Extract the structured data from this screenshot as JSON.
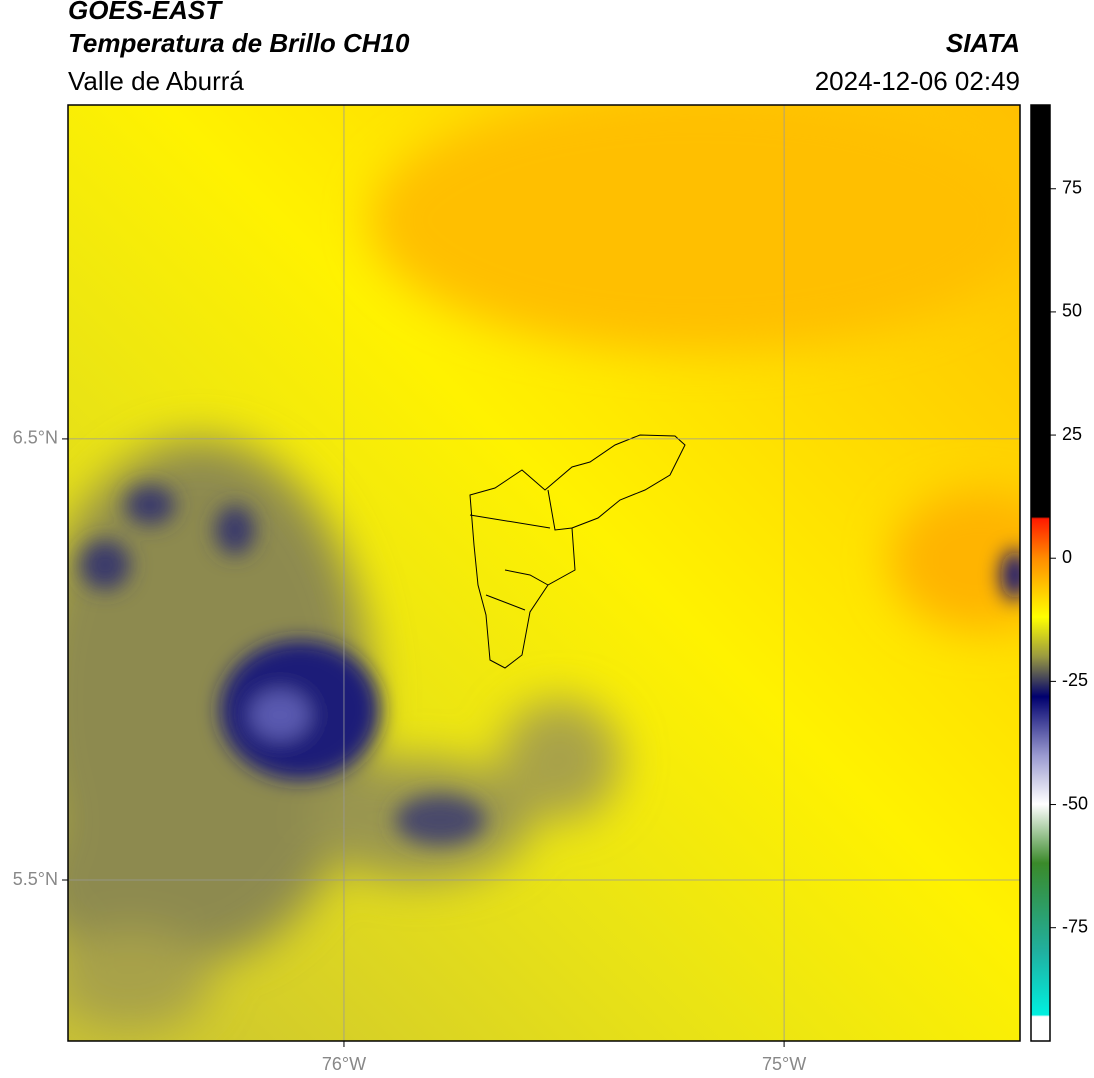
{
  "header": {
    "title": "GOES-EAST",
    "subtitle": "Temperatura de Brillo CH10",
    "region": "Valle de Aburrá",
    "source": "SIATA",
    "datetime": "2024-12-06 02:49"
  },
  "map": {
    "xlim": [
      -76.627,
      -74.464
    ],
    "ylim": [
      5.135,
      7.257
    ],
    "xticks": [
      {
        "value": -76,
        "label": "76°W"
      },
      {
        "value": -75,
        "label": "75°W"
      }
    ],
    "yticks": [
      {
        "value": 5.5,
        "label": "5.5°N"
      },
      {
        "value": 6.5,
        "label": "6.5°N"
      }
    ],
    "grid": true
  },
  "colorbar": {
    "lim": [
      -98,
      92
    ],
    "ticks": [
      -75,
      -50,
      -25,
      0,
      25,
      50,
      75
    ]
  }
}
